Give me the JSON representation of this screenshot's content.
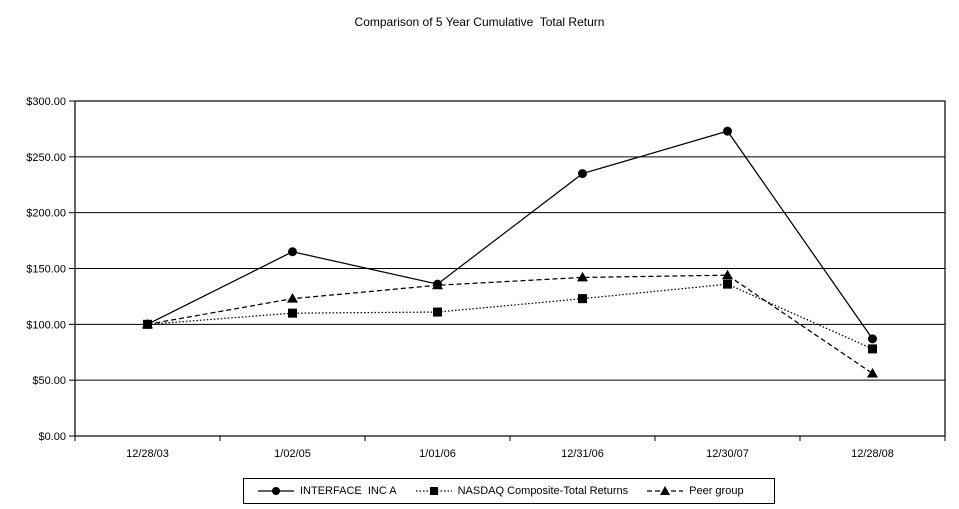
{
  "chart_data": {
    "type": "line",
    "title": "Comparison of 5 Year Cumulative  Total Return",
    "categories": [
      "12/28/03",
      "1/02/05",
      "1/01/06",
      "12/31/06",
      "12/30/07",
      "12/28/08"
    ],
    "series": [
      {
        "name": "INTERFACE  INC A",
        "marker": "circle-icon",
        "line_style": "solid",
        "values": [
          100,
          165,
          136,
          235,
          273,
          87
        ]
      },
      {
        "name": "NASDAQ Composite-Total Returns",
        "marker": "square-icon",
        "line_style": "dotted",
        "values": [
          100,
          110,
          111,
          123,
          136,
          78
        ]
      },
      {
        "name": "Peer group",
        "marker": "triangle-icon",
        "line_style": "dashed",
        "values": [
          100,
          123,
          135,
          142,
          144,
          56
        ]
      }
    ],
    "xlabel": "",
    "ylabel": "",
    "ylim": [
      0,
      300
    ],
    "ytick_values": [
      0,
      50,
      100,
      150,
      200,
      250,
      300
    ],
    "ytick_labels": [
      "$0.00",
      "$50.00",
      "$100.00",
      "$150.00",
      "$200.00",
      "$250.00",
      "$300.00"
    ],
    "grid": "horizontal-only",
    "legend_position": "bottom",
    "line_color": "#000000",
    "background_color": "#ffffff"
  }
}
